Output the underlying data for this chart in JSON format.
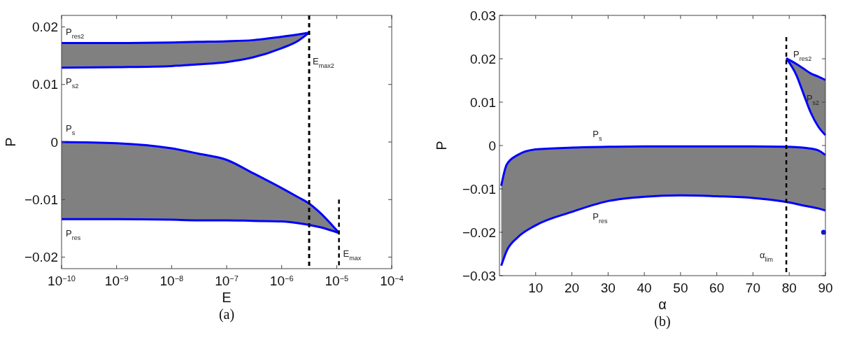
{
  "chart_data": [
    {
      "type": "line",
      "title": "(a)",
      "xlabel": "E",
      "ylabel": "P",
      "log": "x",
      "xlim": [
        1e-10,
        0.0001
      ],
      "ylim": [
        -0.022,
        0.022
      ],
      "xticks": [
        {
          "value": 1e-10,
          "label": "10$^{−10}$"
        },
        {
          "value": 1e-09,
          "label": "10$^{−9}$"
        },
        {
          "value": 1e-08,
          "label": "10$^{−8}$"
        },
        {
          "value": 1e-07,
          "label": "10$^{−7}$"
        },
        {
          "value": 1e-06,
          "label": "10$^{−6}$"
        },
        {
          "value": 1e-05,
          "label": "10$^{−5}$"
        },
        {
          "value": 0.0001,
          "label": "10$^{−4}$"
        }
      ],
      "yticks": [
        {
          "value": -0.02,
          "label": "−0.02"
        },
        {
          "value": -0.01,
          "label": "−0.01"
        },
        0,
        0.01,
        0.02
      ],
      "series": [
        {
          "name": "P$_{res2}$",
          "color": "#0000ff",
          "x": [
            1e-10,
            1e-09,
            1e-08,
            3e-08,
            1e-07,
            3e-07,
            1e-06,
            2e-06,
            3.16e-06
          ],
          "values": [
            0.0172,
            0.0172,
            0.0173,
            0.0174,
            0.0175,
            0.0177,
            0.0183,
            0.0187,
            0.019
          ],
          "upper": [
            0.0172,
            0.0172,
            0.0173,
            0.0174,
            0.0175,
            0.0177,
            0.0183,
            0.0187,
            0.019
          ],
          "lower": [
            0.0129,
            0.013,
            0.0132,
            0.0135,
            0.0139,
            0.0147,
            0.0163,
            0.0176,
            0.019
          ]
        },
        {
          "name": "P$_{s2}$",
          "color": "#0000ff",
          "x": [
            1e-10,
            1e-09,
            1e-08,
            3e-08,
            1e-07,
            3e-07,
            1e-06,
            2e-06,
            3.16e-06
          ],
          "values": [
            0.0129,
            0.013,
            0.0132,
            0.0135,
            0.0139,
            0.0147,
            0.0163,
            0.0176,
            0.019
          ]
        },
        {
          "name": "P$_{s}$",
          "color": "#0000ff",
          "x": [
            1e-10,
            1e-09,
            1e-08,
            3e-08,
            1e-07,
            3e-07,
            1e-06,
            2e-06,
            3.16e-06,
            5e-06,
            1.1e-05
          ],
          "values": [
            0,
            -0.0002,
            -0.0011,
            -0.002,
            -0.0031,
            -0.0054,
            -0.008,
            -0.0096,
            -0.0107,
            -0.0123,
            -0.0158
          ],
          "upper": [
            0,
            -0.0002,
            -0.0011,
            -0.002,
            -0.0031,
            -0.0054,
            -0.008,
            -0.0096,
            -0.0107,
            -0.0123,
            -0.0158
          ],
          "lower": [
            -0.0134,
            -0.0134,
            -0.0135,
            -0.0136,
            -0.0136,
            -0.0137,
            -0.0138,
            -0.0141,
            -0.0144,
            -0.0148,
            -0.0158
          ]
        },
        {
          "name": "P$_{res}$",
          "color": "#0000ff",
          "x": [
            1e-10,
            1e-09,
            1e-08,
            3e-08,
            1e-07,
            3e-07,
            1e-06,
            2e-06,
            3.16e-06,
            5e-06,
            1.1e-05
          ],
          "values": [
            -0.0134,
            -0.0134,
            -0.0135,
            -0.0136,
            -0.0136,
            -0.0137,
            -0.0138,
            -0.0141,
            -0.0144,
            -0.0148,
            -0.0158
          ]
        },
        {
          "name": "E$_{max}$",
          "color": "#000000",
          "line_style": "dashed",
          "x": [
            1.1e-05,
            1.1e-05
          ],
          "values": [
            -0.01,
            -0.022
          ]
        }
      ],
      "ref_lines": [
        {
          "axis": "x",
          "value": 3.16e-06,
          "label": "E$_{max2}$",
          "color": "#000000",
          "line_style": "dashed"
        }
      ]
    },
    {
      "type": "line",
      "title": "(b)",
      "xlabel": "α",
      "ylabel": "P",
      "xlim": [
        0,
        90
      ],
      "ylim": [
        -0.03,
        0.03
      ],
      "xticks": [
        10,
        20,
        30,
        40,
        50,
        60,
        70,
        80,
        90
      ],
      "yticks": [
        {
          "value": -0.03,
          "label": "−0.03"
        },
        {
          "value": -0.02,
          "label": "−0.02"
        },
        {
          "value": -0.01,
          "label": "−0.01"
        },
        0,
        0.01,
        0.02,
        0.03
      ],
      "series": [
        {
          "name": "P$_{s}$",
          "color": "#0000ff",
          "x": [
            0.5,
            2,
            5,
            10,
            20,
            30,
            40,
            50,
            60,
            70,
            79,
            85,
            88,
            90
          ],
          "values": [
            -0.0093,
            -0.0044,
            -0.0022,
            -0.0009,
            -0.0005,
            -0.0003,
            -0.0002,
            -0.0002,
            -0.0002,
            -0.0002,
            -0.0003,
            -0.0006,
            -0.0011,
            -0.0022
          ],
          "upper": [
            -0.0093,
            -0.0044,
            -0.0022,
            -0.0009,
            -0.0005,
            -0.0003,
            -0.0002,
            -0.0002,
            -0.0002,
            -0.0002,
            -0.0003,
            -0.0006,
            -0.0011,
            -0.0022
          ],
          "lower": [
            -0.0277,
            -0.0243,
            -0.0212,
            -0.0184,
            -0.0153,
            -0.0128,
            -0.0118,
            -0.0115,
            -0.0117,
            -0.0121,
            -0.013,
            -0.014,
            -0.0145,
            -0.015
          ]
        },
        {
          "name": "P$_{res}$",
          "color": "#0000ff",
          "x": [
            0.5,
            2,
            5,
            10,
            20,
            30,
            40,
            50,
            60,
            70,
            79,
            85,
            88,
            90
          ],
          "values": [
            -0.0277,
            -0.0243,
            -0.0212,
            -0.0184,
            -0.0153,
            -0.0128,
            -0.0118,
            -0.0115,
            -0.0117,
            -0.0121,
            -0.013,
            -0.014,
            -0.0145,
            -0.015
          ]
        },
        {
          "name": "P$_{res2}$",
          "color": "#0000ff",
          "x": [
            79.2,
            82,
            84,
            86,
            88,
            90
          ],
          "values": [
            0.0201,
            0.0188,
            0.0177,
            0.0166,
            0.0159,
            0.0151
          ],
          "upper": [
            0.0201,
            0.0188,
            0.0177,
            0.0166,
            0.0159,
            0.0151
          ],
          "lower": [
            0.0201,
            0.0162,
            0.0118,
            0.0075,
            0.0044,
            0.0024
          ]
        },
        {
          "name": "P$_{s2}$",
          "color": "#0000ff",
          "x": [
            79.2,
            82,
            84,
            86,
            88,
            90
          ],
          "values": [
            0.0201,
            0.0162,
            0.0118,
            0.0075,
            0.0044,
            0.0024
          ]
        },
        {
          "name": "α$_{lim}$",
          "color": "#000000",
          "line_style": "dashed",
          "x": [
            79.2,
            79.2
          ],
          "values": [
            0.025,
            -0.03
          ]
        },
        {
          "type": "scatter",
          "color": "#0000ff",
          "marker": "circle",
          "x": [
            89.5
          ],
          "values": [
            -0.02
          ]
        }
      ]
    }
  ]
}
